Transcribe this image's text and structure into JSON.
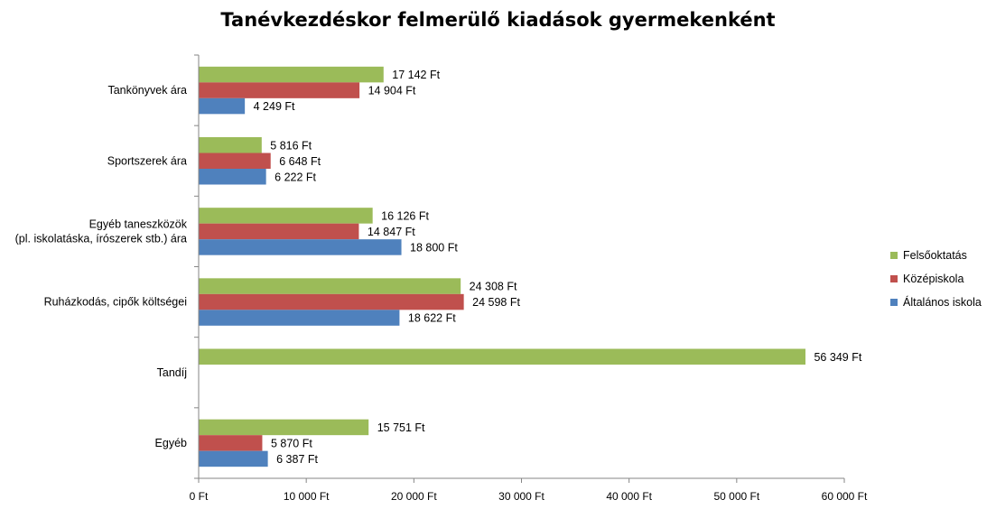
{
  "chart_data": {
    "type": "bar",
    "orientation": "horizontal",
    "title": "Tanévkezdéskor  felmerülő  kiadások  gyermekenként",
    "categories": [
      [
        "Tankönyvek ára"
      ],
      [
        "Sportszerek ára"
      ],
      [
        "Egyéb taneszközök",
        "(pl. iskolatáska, írószerek stb.) ára"
      ],
      [
        "Ruházkodás, cipők költségei"
      ],
      [
        "Tandíj"
      ],
      [
        "Egyéb"
      ]
    ],
    "series": [
      {
        "name": "Felsőoktatás",
        "color": "#9BBB59",
        "values": [
          17142,
          5816,
          16126,
          24308,
          56349,
          15751
        ],
        "labels": [
          "17 142 Ft",
          "5 816 Ft",
          "16 126 Ft",
          "24 308 Ft",
          "56 349 Ft",
          "15 751 Ft"
        ]
      },
      {
        "name": "Középiskola",
        "color": "#C0504D",
        "values": [
          14904,
          6648,
          14847,
          24598,
          null,
          5870
        ],
        "labels": [
          "14 904 Ft",
          "6 648 Ft",
          "14 847 Ft",
          "24 598 Ft",
          "",
          "5 870 Ft"
        ]
      },
      {
        "name": "Általános iskola",
        "color": "#4F81BD",
        "values": [
          4249,
          6222,
          18800,
          18622,
          null,
          6387
        ],
        "labels": [
          "4 249 Ft",
          "6 222 Ft",
          "18 800 Ft",
          "18 622 Ft",
          "",
          "6 387 Ft"
        ]
      }
    ],
    "xlim": [
      0,
      60000
    ],
    "xticks": [
      0,
      10000,
      20000,
      30000,
      40000,
      50000,
      60000
    ],
    "xtick_labels": [
      "0 Ft",
      "10 000 Ft",
      "20 000 Ft",
      "30 000 Ft",
      "40 000 Ft",
      "50 000 Ft",
      "60 000 Ft"
    ],
    "xlabel": "",
    "ylabel": "",
    "grid": false,
    "legend_position": "right"
  }
}
